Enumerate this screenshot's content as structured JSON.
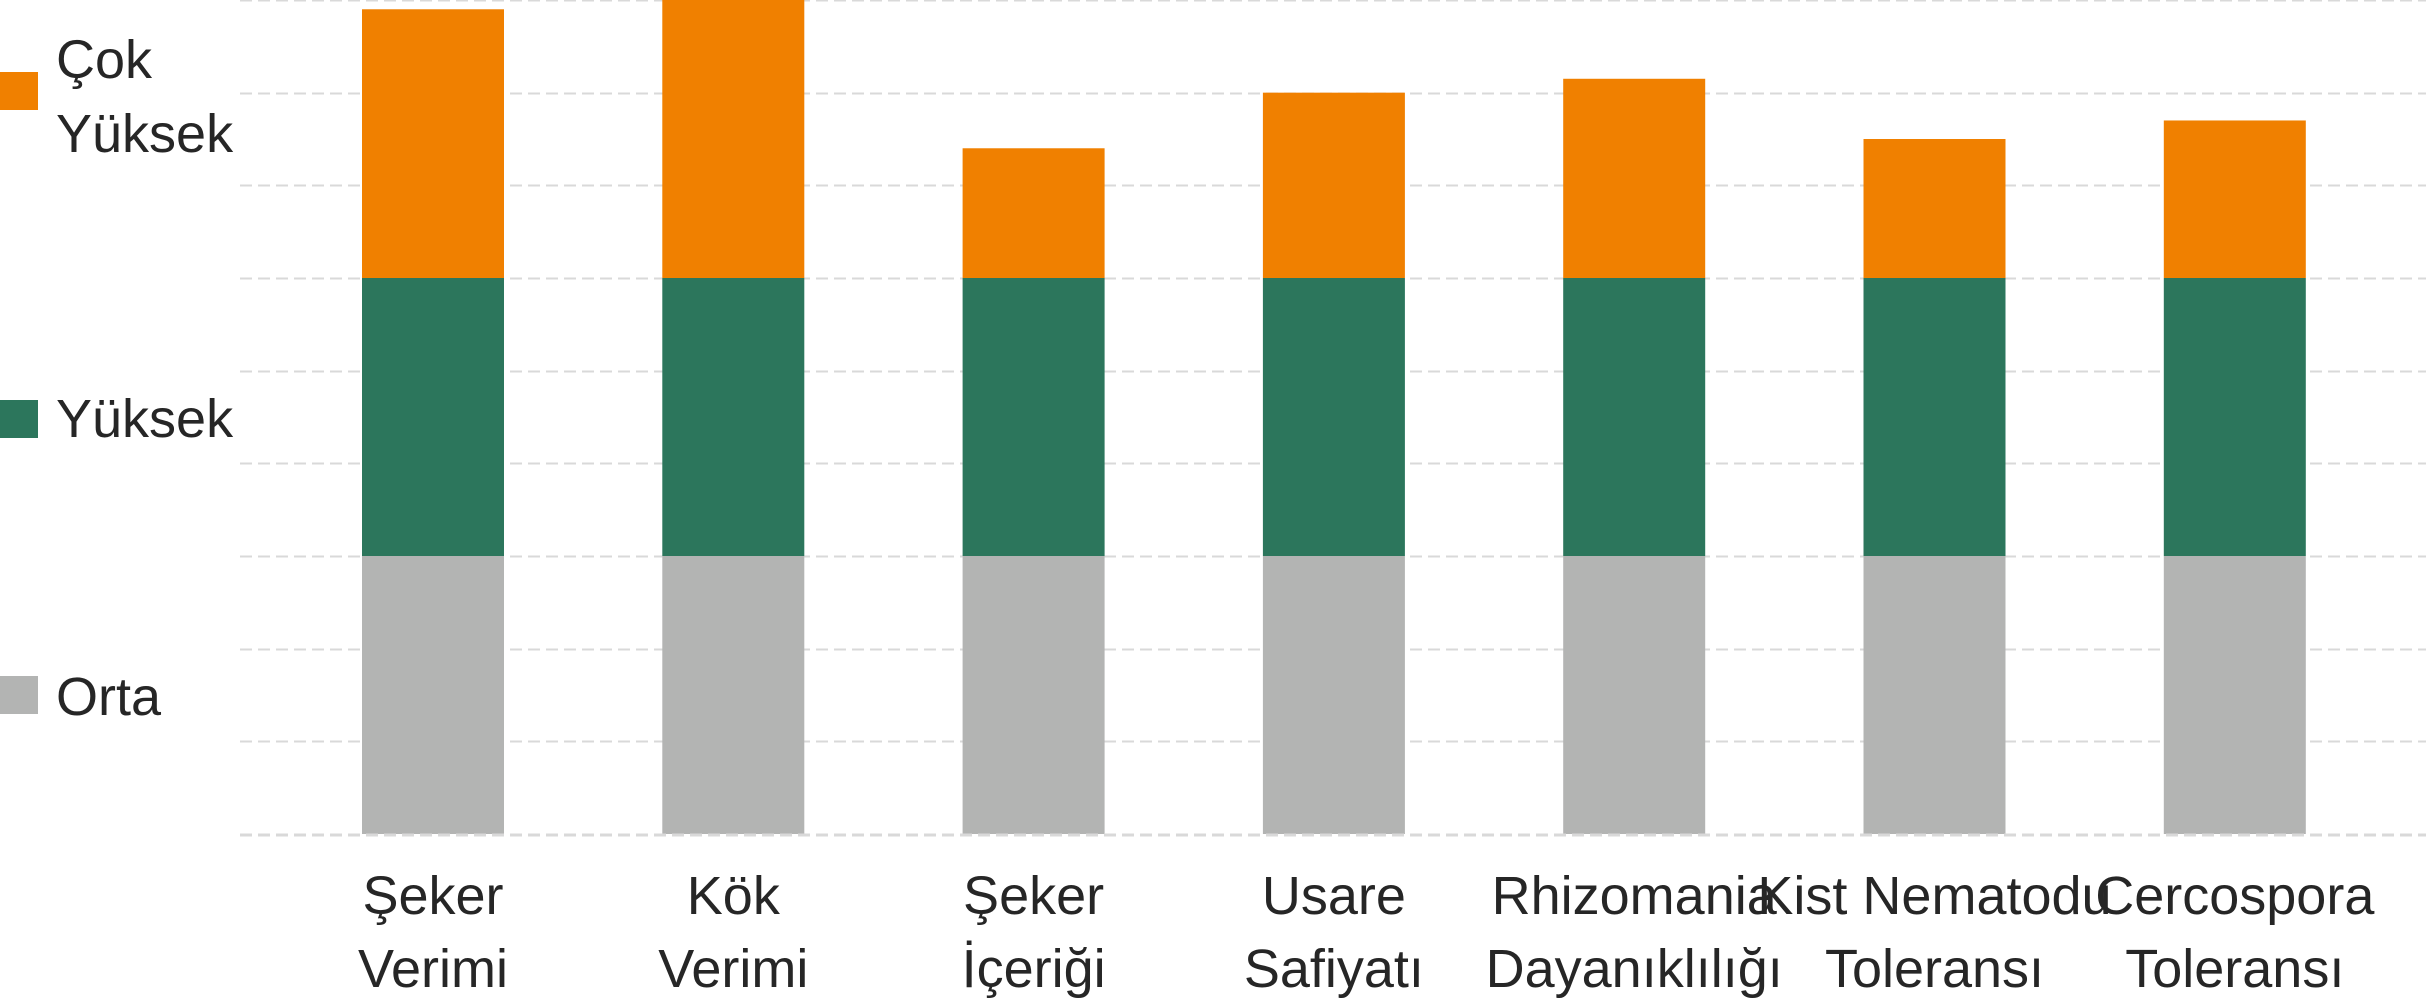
{
  "chart_data": {
    "type": "bar",
    "stacked": true,
    "categories": [
      [
        "Şeker",
        "Verimi"
      ],
      [
        "Kök",
        "Verimi"
      ],
      [
        "Şeker",
        "İçeriği"
      ],
      [
        "Usare",
        "Safiyatı"
      ],
      [
        "Rhizomania",
        "Dayanıklılığı"
      ],
      [
        "Kist Nematodu",
        "Toleransı"
      ],
      [
        "Cercospora",
        "Toleransı"
      ]
    ],
    "series": [
      {
        "name": "Orta",
        "color": "#b3b4b3",
        "values": [
          3,
          3,
          3,
          3,
          3,
          3,
          3
        ]
      },
      {
        "name": "Yüksek",
        "color": "#2c765c",
        "values": [
          3,
          3,
          3,
          3,
          3,
          3,
          3
        ]
      },
      {
        "name": "Çok Yüksek",
        "color": "#f08000",
        "values": [
          2.9,
          3.0,
          1.4,
          2.0,
          2.15,
          1.5,
          1.7
        ]
      }
    ],
    "legend": {
      "position": "left",
      "items": [
        {
          "lines": [
            "Çok",
            "Yüksek"
          ],
          "color": "#f08000"
        },
        {
          "lines": [
            "Yüksek"
          ],
          "color": "#2c765c"
        },
        {
          "lines": [
            "Orta"
          ],
          "color": "#b3b4b3"
        }
      ]
    },
    "ylim": [
      0,
      9
    ],
    "grid": true,
    "gridline_color": "#d9d9d9",
    "axis_color": "#d9d9d9",
    "title": "",
    "xlabel": "",
    "ylabel": ""
  }
}
